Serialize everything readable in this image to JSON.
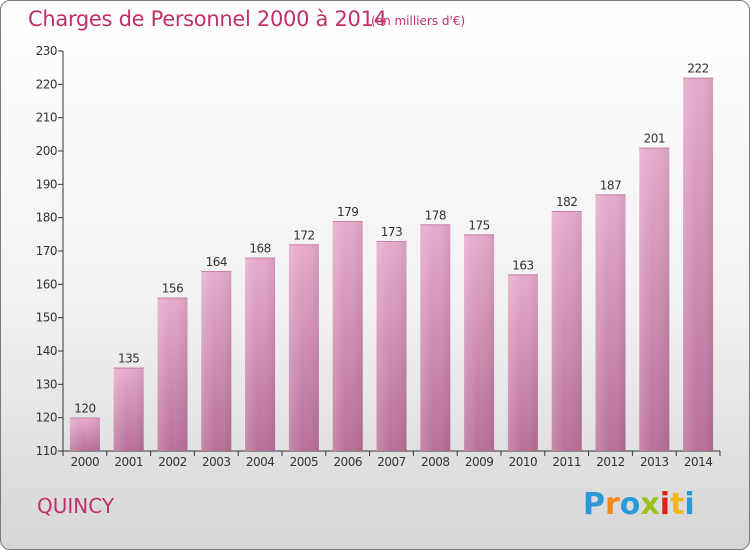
{
  "header": {
    "title": "Charges de Personnel 2000 à 2014",
    "unit_note": "(en milliers d'€)"
  },
  "footer": {
    "city": "QUINCY",
    "brand": "Proxiti"
  },
  "colors": {
    "title": "#c0306a",
    "bar_top": "#e6aacb",
    "bar_bottom": "#b8709a",
    "axis": "#333333"
  },
  "brand_letter_colors": [
    "#2a9ad6",
    "#f08a1c",
    "#2a9ad6",
    "#9bc11b",
    "#e2201b",
    "#f0b61c",
    "#2a9ad6"
  ],
  "chart_data": {
    "type": "bar",
    "categories": [
      "2000",
      "2001",
      "2002",
      "2003",
      "2004",
      "2005",
      "2006",
      "2007",
      "2008",
      "2009",
      "2010",
      "2011",
      "2012",
      "2013",
      "2014"
    ],
    "values": [
      120,
      135,
      156,
      164,
      168,
      172,
      179,
      173,
      178,
      175,
      163,
      182,
      187,
      201,
      222
    ],
    "ylim": [
      110,
      230
    ],
    "yticks": [
      110,
      120,
      130,
      140,
      150,
      160,
      170,
      180,
      190,
      200,
      210,
      220,
      230
    ],
    "xlabel": "",
    "ylabel": "",
    "grid": false,
    "legend": "none"
  }
}
